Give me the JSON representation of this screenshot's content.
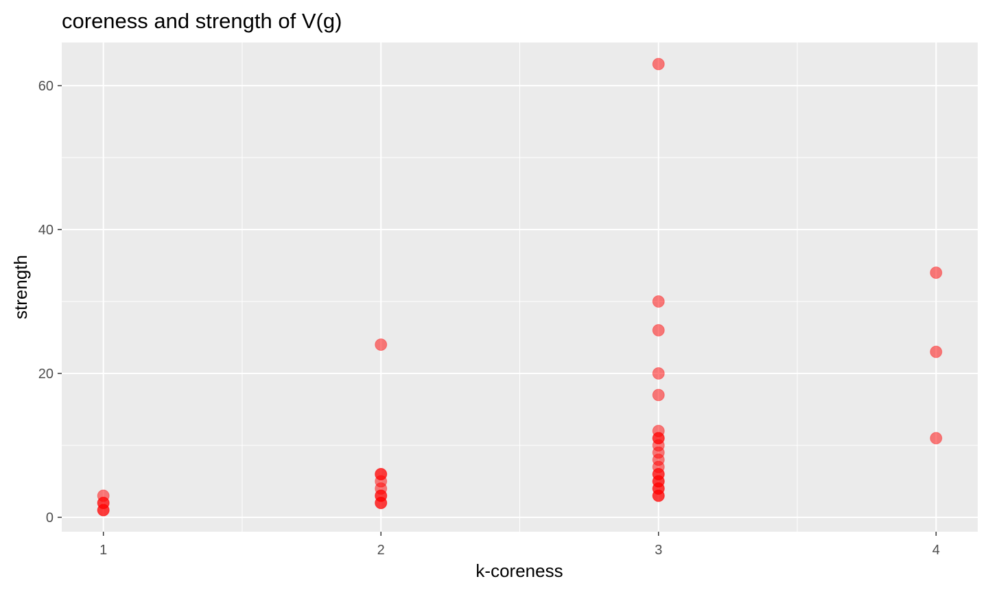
{
  "chart_data": {
    "type": "scatter",
    "title": "coreness and strength of V(g)",
    "xlabel": "k-coreness",
    "ylabel": "strength",
    "xlim": [
      0.85,
      4.15
    ],
    "ylim": [
      -2,
      66
    ],
    "x_ticks": [
      1,
      2,
      3,
      4
    ],
    "x_tick_labels": [
      "1",
      "2",
      "3",
      "4"
    ],
    "y_ticks": [
      0,
      20,
      40,
      60
    ],
    "y_tick_labels": [
      "0",
      "20",
      "40",
      "60"
    ],
    "x_minor_breaks": [
      1.5,
      2.5,
      3.5
    ],
    "y_minor_breaks": [
      10,
      30,
      50
    ],
    "grid": true,
    "legend": "none",
    "colors": {
      "panel_background": "#ebebeb",
      "grid_line": "#ffffff",
      "point_fill": "#ff0000",
      "point_opacity": 0.5
    },
    "points": [
      {
        "x": 1,
        "y": 1
      },
      {
        "x": 1,
        "y": 1
      },
      {
        "x": 1,
        "y": 2
      },
      {
        "x": 1,
        "y": 2
      },
      {
        "x": 1,
        "y": 3
      },
      {
        "x": 2,
        "y": 2
      },
      {
        "x": 2,
        "y": 2
      },
      {
        "x": 2,
        "y": 3
      },
      {
        "x": 2,
        "y": 3
      },
      {
        "x": 2,
        "y": 4
      },
      {
        "x": 2,
        "y": 5
      },
      {
        "x": 2,
        "y": 6
      },
      {
        "x": 2,
        "y": 6
      },
      {
        "x": 2,
        "y": 24
      },
      {
        "x": 3,
        "y": 3
      },
      {
        "x": 3,
        "y": 3
      },
      {
        "x": 3,
        "y": 4
      },
      {
        "x": 3,
        "y": 4
      },
      {
        "x": 3,
        "y": 5
      },
      {
        "x": 3,
        "y": 5
      },
      {
        "x": 3,
        "y": 6
      },
      {
        "x": 3,
        "y": 6
      },
      {
        "x": 3,
        "y": 7
      },
      {
        "x": 3,
        "y": 8
      },
      {
        "x": 3,
        "y": 9
      },
      {
        "x": 3,
        "y": 10
      },
      {
        "x": 3,
        "y": 11
      },
      {
        "x": 3,
        "y": 11
      },
      {
        "x": 3,
        "y": 12
      },
      {
        "x": 3,
        "y": 17
      },
      {
        "x": 3,
        "y": 20
      },
      {
        "x": 3,
        "y": 26
      },
      {
        "x": 3,
        "y": 30
      },
      {
        "x": 3,
        "y": 63
      },
      {
        "x": 4,
        "y": 11
      },
      {
        "x": 4,
        "y": 23
      },
      {
        "x": 4,
        "y": 34
      }
    ]
  }
}
